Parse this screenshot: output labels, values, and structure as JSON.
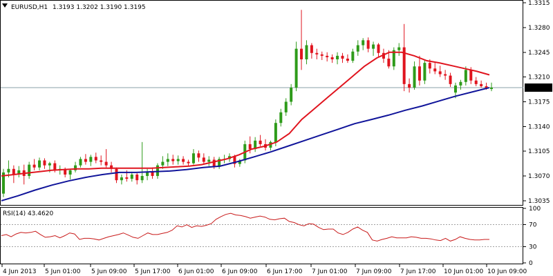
{
  "main_panel": {
    "symbol_label": "EURUSD,H1",
    "ohlc_label": "1.3193 1.3202 1.3190 1.3195",
    "collapse_icon": "triangle-down-icon"
  },
  "rsi_panel": {
    "label": "RSI(14) 43.4620"
  },
  "colors": {
    "bull": "#2e9b1a",
    "bear": "#e0141e",
    "ma_fast": "#e0141e",
    "ma_slow": "#10149a",
    "rsi": "#c81818",
    "price_line": "#8aa0a8",
    "bid_tag_bg": "#000000",
    "bid_tag_text": "#ffffff"
  },
  "chart_data": [
    {
      "type": "candlestick",
      "title": "EURUSD,H1",
      "y_ticks": [
        "1.3315",
        "1.3280",
        "1.3245",
        "1.3210",
        "1.3175",
        "1.3140",
        "1.3105",
        "1.3070",
        "1.3035"
      ],
      "ylim": [
        1.303,
        1.3317
      ],
      "current_price": "1.3195",
      "x_tick_labels": [
        "4 Jun 2013",
        "5 Jun 01:00",
        "5 Jun 09:00",
        "5 Jun 17:00",
        "6 Jun 01:00",
        "6 Jun 09:00",
        "6 Jun 17:00",
        "7 Jun 01:00",
        "7 Jun 09:00",
        "7 Jun 17:00",
        "10 Jun 01:00",
        "10 Jun 09:00"
      ],
      "candles": [
        [
          1.3045,
          1.308,
          1.304,
          1.3075
        ],
        [
          1.3075,
          1.3092,
          1.3068,
          1.308
        ],
        [
          1.308,
          1.3085,
          1.306,
          1.3072
        ],
        [
          1.3072,
          1.3084,
          1.3068,
          1.3078
        ],
        [
          1.3078,
          1.3086,
          1.3058,
          1.307
        ],
        [
          1.307,
          1.309,
          1.3066,
          1.3086
        ],
        [
          1.3086,
          1.3094,
          1.3078,
          1.3082
        ],
        [
          1.3082,
          1.3096,
          1.3078,
          1.3092
        ],
        [
          1.3092,
          1.3095,
          1.308,
          1.3085
        ],
        [
          1.3085,
          1.309,
          1.3075,
          1.3088
        ],
        [
          1.3088,
          1.3092,
          1.3075,
          1.3078
        ],
        [
          1.3078,
          1.3085,
          1.3072,
          1.308
        ],
        [
          1.308,
          1.3082,
          1.3068,
          1.3072
        ],
        [
          1.3072,
          1.308,
          1.3065,
          1.3078
        ],
        [
          1.3078,
          1.309,
          1.3075,
          1.3085
        ],
        [
          1.3085,
          1.3097,
          1.3082,
          1.3094
        ],
        [
          1.3094,
          1.3101,
          1.3086,
          1.309
        ],
        [
          1.309,
          1.31,
          1.3084,
          1.3097
        ],
        [
          1.3097,
          1.3103,
          1.3088,
          1.3092
        ],
        [
          1.3092,
          1.3099,
          1.3085,
          1.309
        ],
        [
          1.309,
          1.3108,
          1.3082,
          1.3085
        ],
        [
          1.3085,
          1.309,
          1.3075,
          1.308
        ],
        [
          1.308,
          1.3082,
          1.306,
          1.3064
        ],
        [
          1.3064,
          1.3072,
          1.3058,
          1.3068
        ],
        [
          1.3068,
          1.3078,
          1.3062,
          1.3066
        ],
        [
          1.3066,
          1.3076,
          1.3062,
          1.3072
        ],
        [
          1.3072,
          1.3074,
          1.3058,
          1.3064
        ],
        [
          1.3064,
          1.3118,
          1.306,
          1.307
        ],
        [
          1.307,
          1.308,
          1.3064,
          1.3076
        ],
        [
          1.3076,
          1.3082,
          1.3066,
          1.307
        ],
        [
          1.307,
          1.3088,
          1.3066,
          1.3085
        ],
        [
          1.3085,
          1.3098,
          1.308,
          1.309
        ],
        [
          1.309,
          1.3102,
          1.3084,
          1.3094
        ],
        [
          1.3094,
          1.31,
          1.3086,
          1.3091
        ],
        [
          1.3091,
          1.3099,
          1.3086,
          1.3094
        ],
        [
          1.3094,
          1.3098,
          1.3086,
          1.309
        ],
        [
          1.309,
          1.3093,
          1.3084,
          1.3088
        ],
        [
          1.3088,
          1.3108,
          1.3086,
          1.3102
        ],
        [
          1.3102,
          1.3106,
          1.309,
          1.3096
        ],
        [
          1.3096,
          1.3102,
          1.3086,
          1.309
        ],
        [
          1.309,
          1.3098,
          1.3084,
          1.3093
        ],
        [
          1.3093,
          1.3097,
          1.308,
          1.3083
        ],
        [
          1.3083,
          1.3097,
          1.308,
          1.3094
        ],
        [
          1.3094,
          1.31,
          1.3088,
          1.3094
        ],
        [
          1.3094,
          1.3102,
          1.309,
          1.3098
        ],
        [
          1.3098,
          1.31,
          1.3082,
          1.3087
        ],
        [
          1.3087,
          1.3094,
          1.3083,
          1.3092
        ],
        [
          1.3092,
          1.312,
          1.3088,
          1.3115
        ],
        [
          1.3115,
          1.3126,
          1.3102,
          1.3108
        ],
        [
          1.3108,
          1.3125,
          1.3104,
          1.312
        ],
        [
          1.312,
          1.3128,
          1.3112,
          1.3115
        ],
        [
          1.3115,
          1.3122,
          1.3106,
          1.311
        ],
        [
          1.311,
          1.312,
          1.3106,
          1.3118
        ],
        [
          1.3118,
          1.315,
          1.3112,
          1.3145
        ],
        [
          1.3145,
          1.3165,
          1.314,
          1.316
        ],
        [
          1.316,
          1.318,
          1.3155,
          1.3175
        ],
        [
          1.3175,
          1.32,
          1.317,
          1.3195
        ],
        [
          1.3195,
          1.326,
          1.319,
          1.325
        ],
        [
          1.325,
          1.3305,
          1.322,
          1.3235
        ],
        [
          1.3235,
          1.3262,
          1.3228,
          1.3255
        ],
        [
          1.3255,
          1.3258,
          1.3236,
          1.3244
        ],
        [
          1.3244,
          1.325,
          1.3235,
          1.3242
        ],
        [
          1.3242,
          1.3246,
          1.3234,
          1.324
        ],
        [
          1.324,
          1.3245,
          1.3232,
          1.3238
        ],
        [
          1.3238,
          1.3242,
          1.323,
          1.3235
        ],
        [
          1.3235,
          1.3245,
          1.3228,
          1.324
        ],
        [
          1.324,
          1.3244,
          1.323,
          1.3236
        ],
        [
          1.3236,
          1.3242,
          1.323,
          1.3233
        ],
        [
          1.3233,
          1.325,
          1.323,
          1.3246
        ],
        [
          1.3246,
          1.3262,
          1.324,
          1.3255
        ],
        [
          1.3255,
          1.3265,
          1.3248,
          1.3262
        ],
        [
          1.3262,
          1.3266,
          1.3245,
          1.325
        ],
        [
          1.325,
          1.326,
          1.324,
          1.3256
        ],
        [
          1.3256,
          1.3258,
          1.3238,
          1.3244
        ],
        [
          1.3244,
          1.325,
          1.323,
          1.3236
        ],
        [
          1.3236,
          1.3248,
          1.3222,
          1.3225
        ],
        [
          1.3225,
          1.3252,
          1.322,
          1.3248
        ],
        [
          1.3248,
          1.3258,
          1.324,
          1.3252
        ],
        [
          1.3252,
          1.3285,
          1.319,
          1.32
        ],
        [
          1.32,
          1.3208,
          1.3188,
          1.3195
        ],
        [
          1.3195,
          1.3232,
          1.3192,
          1.3225
        ],
        [
          1.3225,
          1.324,
          1.3198,
          1.3205
        ],
        [
          1.3205,
          1.3235,
          1.32,
          1.323
        ],
        [
          1.323,
          1.3235,
          1.3215,
          1.3222
        ],
        [
          1.3222,
          1.323,
          1.3214,
          1.3218
        ],
        [
          1.3218,
          1.3226,
          1.321,
          1.3214
        ],
        [
          1.3214,
          1.322,
          1.3206,
          1.3212
        ],
        [
          1.3212,
          1.3216,
          1.3196,
          1.32
        ],
        [
          1.3188,
          1.3202,
          1.318,
          1.3198
        ],
        [
          1.3198,
          1.3206,
          1.3192,
          1.3203
        ],
        [
          1.3203,
          1.3225,
          1.3198,
          1.322
        ],
        [
          1.322,
          1.3224,
          1.32,
          1.3205
        ],
        [
          1.3205,
          1.321,
          1.3197,
          1.32
        ],
        [
          1.32,
          1.3205,
          1.3195,
          1.3197
        ],
        [
          1.3197,
          1.3202,
          1.3192,
          1.3194
        ],
        [
          1.3193,
          1.3202,
          1.319,
          1.3195
        ]
      ],
      "ma_fast": [
        1.307,
        1.3072,
        1.3074,
        1.3076,
        1.3078,
        1.3079,
        1.308,
        1.308,
        1.3081,
        1.3081,
        1.3081,
        1.3081,
        1.3081,
        1.3082,
        1.3083,
        1.3084,
        1.3086,
        1.309,
        1.3094,
        1.31,
        1.3108,
        1.3112,
        1.3118,
        1.313,
        1.315,
        1.3165,
        1.318,
        1.3195,
        1.321,
        1.3225,
        1.3237,
        1.3245,
        1.3245,
        1.324,
        1.3233,
        1.323,
        1.3226,
        1.3222,
        1.3218,
        1.3213
      ],
      "ma_slow": [
        1.3035,
        1.3042,
        1.305,
        1.3057,
        1.3063,
        1.3068,
        1.3072,
        1.3075,
        1.3075,
        1.3076,
        1.3077,
        1.3079,
        1.3082,
        1.3084,
        1.309,
        1.3097,
        1.3104,
        1.3112,
        1.312,
        1.3128,
        1.3136,
        1.3144,
        1.315,
        1.3156,
        1.3163,
        1.3169,
        1.3176,
        1.3183,
        1.3189,
        1.3195
      ]
    },
    {
      "type": "line",
      "title": "RSI(14) 43.4620",
      "y_ticks": [
        "100",
        "70",
        "30",
        "0"
      ],
      "ylim": [
        0,
        100
      ],
      "levels": [
        70,
        30
      ],
      "values": [
        50,
        52,
        48,
        53,
        56,
        55,
        56,
        58,
        52,
        47,
        48,
        50,
        46,
        50,
        55,
        53,
        43,
        45,
        45,
        44,
        42,
        45,
        48,
        50,
        52,
        55,
        51,
        47,
        45,
        50,
        55,
        52,
        52,
        54,
        56,
        60,
        68,
        66,
        70,
        65,
        68,
        67,
        69,
        72,
        80,
        85,
        89,
        91,
        88,
        87,
        85,
        82,
        84,
        86,
        84,
        80,
        79,
        81,
        82,
        76,
        74,
        70,
        68,
        72,
        71,
        65,
        61,
        62,
        62,
        55,
        52,
        56,
        62,
        66,
        60,
        56,
        42,
        40,
        43,
        45,
        48,
        46,
        46,
        46,
        48,
        47,
        45,
        45,
        44,
        42,
        41,
        45,
        40,
        43,
        48,
        45,
        43,
        42,
        42,
        43,
        43
      ]
    }
  ]
}
